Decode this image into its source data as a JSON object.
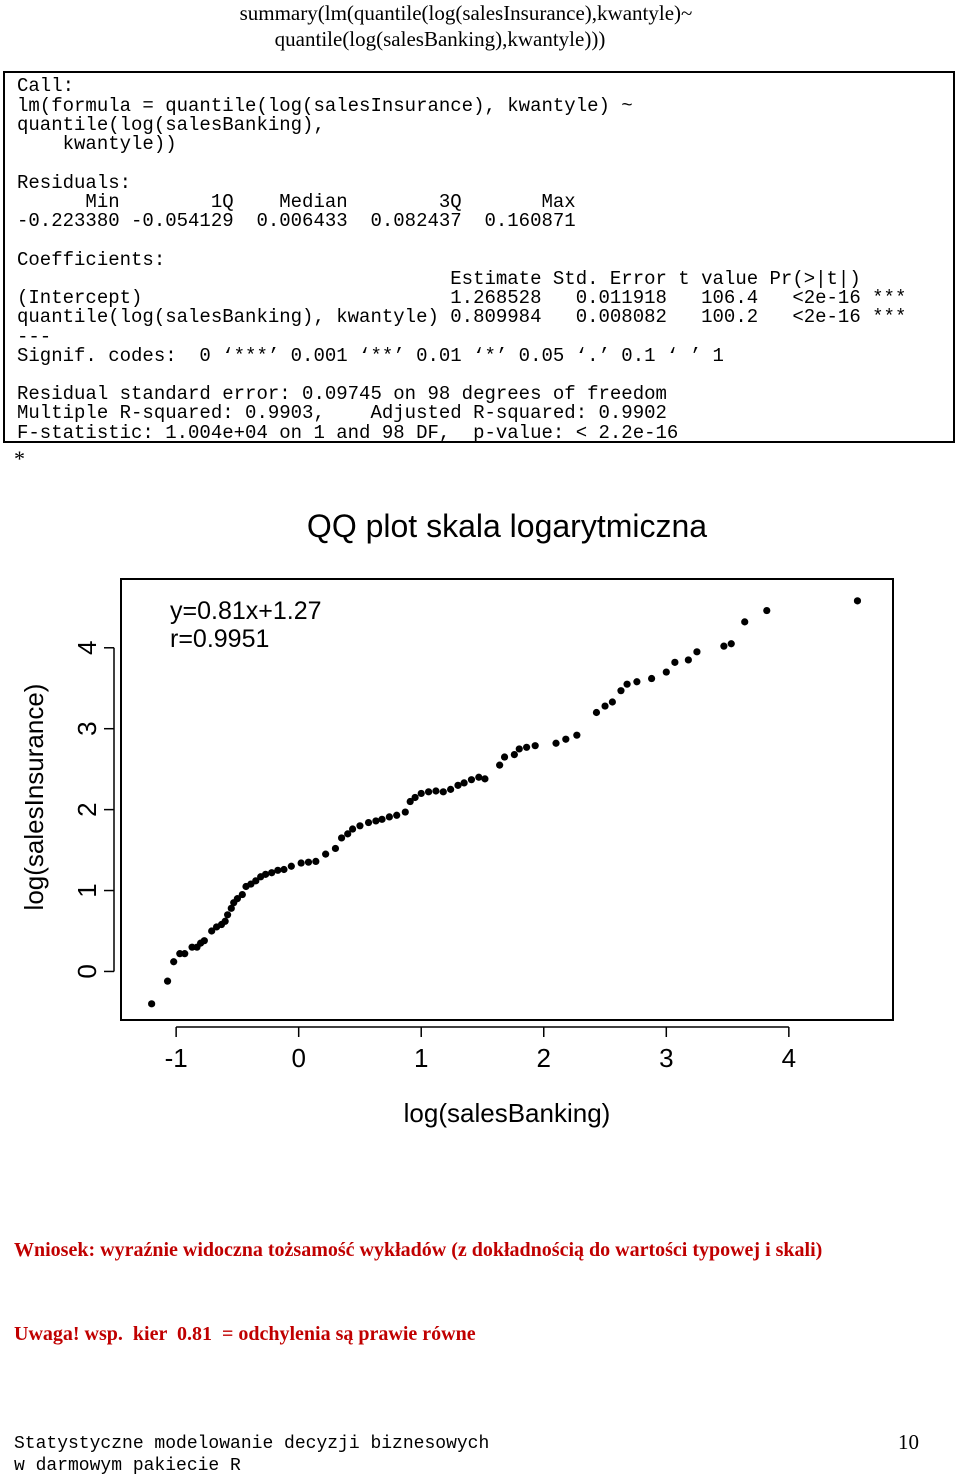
{
  "header": {
    "title_line1": "summary(lm(quantile(log(salesInsurance),kwantyle)~",
    "title_line2": "quantile(log(salesBanking),kwantyle)))"
  },
  "r_output": [
    "Call:",
    "lm(formula = quantile(log(salesInsurance), kwantyle) ~",
    "quantile(log(salesBanking),",
    "    kwantyle))",
    "",
    "Residuals:",
    "      Min        1Q    Median        3Q       Max",
    "-0.223380 -0.054129  0.006433  0.082437  0.160871",
    "",
    "Coefficients:",
    "                                      Estimate Std. Error t value Pr(>|t|)",
    "(Intercept)                           1.268528   0.011918   106.4   <2e-16 ***",
    "quantile(log(salesBanking), kwantyle) 0.809984   0.008082   100.2   <2e-16 ***",
    "---",
    "Signif. codes:  0 ‘***’ 0.001 ‘**’ 0.01 ‘*’ 0.05 ‘.’ 0.1 ‘ ’ 1",
    "",
    "Residual standard error: 0.09745 on 98 degrees of freedom",
    "Multiple R-squared: 0.9903,    Adjusted R-squared: 0.9902",
    "F-statistic: 1.004e+04 on 1 and 98 DF,  p-value: < 2.2e-16"
  ],
  "after_output": "*",
  "chart_data": {
    "type": "scatter",
    "title": "QQ plot skala logarytmiczna",
    "xlabel": "log(salesBanking)",
    "ylabel": "log(salesInsurance)",
    "xlim": [
      -1.45,
      4.85
    ],
    "ylim": [
      -0.6,
      4.85
    ],
    "x_ticks": [
      -1,
      0,
      1,
      2,
      3,
      4
    ],
    "y_ticks": [
      0,
      1,
      2,
      3,
      4
    ],
    "annotations": [
      "y=0.81x+1.27",
      "r=0.9951"
    ],
    "points": [
      [
        -1.2,
        -0.4
      ],
      [
        -1.07,
        -0.12
      ],
      [
        -1.02,
        0.12
      ],
      [
        -0.97,
        0.22
      ],
      [
        -0.93,
        0.22
      ],
      [
        -0.87,
        0.3
      ],
      [
        -0.83,
        0.3
      ],
      [
        -0.8,
        0.35
      ],
      [
        -0.77,
        0.38
      ],
      [
        -0.71,
        0.5
      ],
      [
        -0.67,
        0.55
      ],
      [
        -0.63,
        0.58
      ],
      [
        -0.6,
        0.62
      ],
      [
        -0.58,
        0.7
      ],
      [
        -0.55,
        0.78
      ],
      [
        -0.53,
        0.85
      ],
      [
        -0.5,
        0.9
      ],
      [
        -0.46,
        0.95
      ],
      [
        -0.43,
        1.05
      ],
      [
        -0.39,
        1.08
      ],
      [
        -0.35,
        1.12
      ],
      [
        -0.31,
        1.17
      ],
      [
        -0.27,
        1.2
      ],
      [
        -0.22,
        1.22
      ],
      [
        -0.17,
        1.25
      ],
      [
        -0.12,
        1.26
      ],
      [
        -0.06,
        1.3
      ],
      [
        0.02,
        1.34
      ],
      [
        0.08,
        1.35
      ],
      [
        0.14,
        1.36
      ],
      [
        0.22,
        1.45
      ],
      [
        0.3,
        1.52
      ],
      [
        0.35,
        1.65
      ],
      [
        0.4,
        1.7
      ],
      [
        0.44,
        1.76
      ],
      [
        0.5,
        1.8
      ],
      [
        0.57,
        1.84
      ],
      [
        0.63,
        1.86
      ],
      [
        0.68,
        1.88
      ],
      [
        0.74,
        1.91
      ],
      [
        0.8,
        1.93
      ],
      [
        0.87,
        1.97
      ],
      [
        0.91,
        2.1
      ],
      [
        0.95,
        2.15
      ],
      [
        1.0,
        2.2
      ],
      [
        1.06,
        2.22
      ],
      [
        1.12,
        2.23
      ],
      [
        1.18,
        2.22
      ],
      [
        1.24,
        2.25
      ],
      [
        1.3,
        2.3
      ],
      [
        1.35,
        2.33
      ],
      [
        1.41,
        2.37
      ],
      [
        1.47,
        2.4
      ],
      [
        1.52,
        2.38
      ],
      [
        1.64,
        2.55
      ],
      [
        1.68,
        2.65
      ],
      [
        1.76,
        2.68
      ],
      [
        1.8,
        2.75
      ],
      [
        1.86,
        2.77
      ],
      [
        1.93,
        2.79
      ],
      [
        2.1,
        2.82
      ],
      [
        2.18,
        2.87
      ],
      [
        2.27,
        2.92
      ],
      [
        2.43,
        3.2
      ],
      [
        2.5,
        3.28
      ],
      [
        2.56,
        3.33
      ],
      [
        2.63,
        3.47
      ],
      [
        2.68,
        3.55
      ],
      [
        2.76,
        3.58
      ],
      [
        2.88,
        3.62
      ],
      [
        3.0,
        3.7
      ],
      [
        3.07,
        3.82
      ],
      [
        3.18,
        3.85
      ],
      [
        3.25,
        3.95
      ],
      [
        3.47,
        4.02
      ],
      [
        3.53,
        4.05
      ],
      [
        3.64,
        4.32
      ],
      [
        3.82,
        4.46
      ],
      [
        4.56,
        4.58
      ]
    ]
  },
  "conclusion": {
    "line1": "Wniosek: wyraźnie widoczna tożsamość wykładów (z dokładnością do wartości typowej i skali)",
    "line2": "Uwaga! wsp.  kier  0.81  = odchylenia są prawie równe"
  },
  "footer": {
    "line1": "Statystyczne modelowanie decyzji biznesowych",
    "line2": "w darmowym pakiecie R",
    "page_number": "10"
  }
}
